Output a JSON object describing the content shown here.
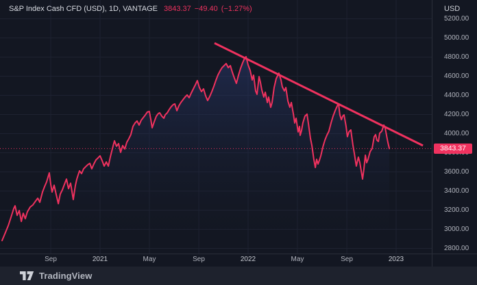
{
  "header": {
    "symbol_title": "S&P Index Cash CFD (USD), 1D, VANTAGE",
    "last_price": "3843.37",
    "change": "−49.40",
    "change_pct": "(−1.27%)"
  },
  "price_axis": {
    "currency_label": "USD",
    "labels": [
      "5200.00",
      "5000.00",
      "4800.00",
      "4600.00",
      "4400.00",
      "4200.00",
      "4000.00",
      "3800.00",
      "3600.00",
      "3400.00",
      "3200.00",
      "3000.00",
      "2800.00"
    ],
    "price_tag": "3843.37"
  },
  "time_axis": {
    "labels": [
      {
        "text": "Sep",
        "t": 2020.667,
        "kind": "month"
      },
      {
        "text": "2021",
        "t": 2021.0,
        "kind": "year"
      },
      {
        "text": "May",
        "t": 2021.333,
        "kind": "month"
      },
      {
        "text": "Sep",
        "t": 2021.667,
        "kind": "month"
      },
      {
        "text": "2022",
        "t": 2022.0,
        "kind": "year"
      },
      {
        "text": "May",
        "t": 2022.333,
        "kind": "month"
      },
      {
        "text": "Sep",
        "t": 2022.667,
        "kind": "month"
      },
      {
        "text": "2023",
        "t": 2023.0,
        "kind": "year"
      }
    ]
  },
  "footer": {
    "brand": "TradingView",
    "logo_icon": "tradingview-logo"
  },
  "colors": {
    "background": "#131722",
    "grid": "#1e2231",
    "separator": "#2a2e39",
    "accent": "#f0325f",
    "area_fill_top": "rgba(48,66,130,0.50)",
    "area_fill_bottom": "rgba(19,23,34,0)",
    "axis_text": "#b2b5be",
    "title_text": "#d8dbe2",
    "footer_bg": "#1e222d"
  },
  "chart_data": {
    "type": "area",
    "title": "S&P Index Cash CFD (USD), 1D, VANTAGE",
    "xlabel": "",
    "ylabel": "USD",
    "x_unit": "decimal_year",
    "x_range": [
      2020.324,
      2023.241
    ],
    "y_range": [
      2746,
      5396
    ],
    "grid": true,
    "y_gridlines": [
      2800,
      3000,
      3200,
      3400,
      3600,
      3800,
      4000,
      4200,
      4400,
      4600,
      4800,
      5000,
      5200
    ],
    "price_line": {
      "value": 3843.37,
      "style": "dotted"
    },
    "trendline": {
      "name": "descending-trendline",
      "from": [
        2021.773,
        4946
      ],
      "to": [
        2023.181,
        3875
      ]
    },
    "series": [
      {
        "name": "S&P Index Cash CFD (USD) 1D close",
        "points": [
          [
            2020.338,
            2882
          ],
          [
            2020.361,
            2968
          ],
          [
            2020.38,
            3039
          ],
          [
            2020.398,
            3125
          ],
          [
            2020.417,
            3218
          ],
          [
            2020.426,
            3246
          ],
          [
            2020.44,
            3146
          ],
          [
            2020.454,
            3196
          ],
          [
            2020.468,
            3082
          ],
          [
            2020.481,
            3168
          ],
          [
            2020.495,
            3111
          ],
          [
            2020.509,
            3182
          ],
          [
            2020.528,
            3232
          ],
          [
            2020.546,
            3254
          ],
          [
            2020.565,
            3296
          ],
          [
            2020.579,
            3325
          ],
          [
            2020.593,
            3282
          ],
          [
            2020.611,
            3389
          ],
          [
            2020.625,
            3446
          ],
          [
            2020.639,
            3496
          ],
          [
            2020.657,
            3589
          ],
          [
            2020.667,
            3468
          ],
          [
            2020.676,
            3389
          ],
          [
            2020.69,
            3461
          ],
          [
            2020.704,
            3361
          ],
          [
            2020.718,
            3268
          ],
          [
            2020.731,
            3368
          ],
          [
            2020.745,
            3411
          ],
          [
            2020.759,
            3468
          ],
          [
            2020.773,
            3525
          ],
          [
            2020.787,
            3425
          ],
          [
            2020.801,
            3482
          ],
          [
            2020.81,
            3396
          ],
          [
            2020.819,
            3311
          ],
          [
            2020.833,
            3454
          ],
          [
            2020.843,
            3525
          ],
          [
            2020.852,
            3568
          ],
          [
            2020.861,
            3611
          ],
          [
            2020.875,
            3582
          ],
          [
            2020.889,
            3632
          ],
          [
            2020.903,
            3654
          ],
          [
            2020.917,
            3675
          ],
          [
            2020.931,
            3689
          ],
          [
            2020.944,
            3632
          ],
          [
            2020.958,
            3682
          ],
          [
            2020.972,
            3725
          ],
          [
            2020.986,
            3746
          ],
          [
            2021.0,
            3768
          ],
          [
            2021.014,
            3718
          ],
          [
            2021.028,
            3661
          ],
          [
            2021.042,
            3704
          ],
          [
            2021.056,
            3661
          ],
          [
            2021.069,
            3754
          ],
          [
            2021.083,
            3839
          ],
          [
            2021.097,
            3925
          ],
          [
            2021.111,
            3868
          ],
          [
            2021.125,
            3896
          ],
          [
            2021.139,
            3804
          ],
          [
            2021.153,
            3875
          ],
          [
            2021.167,
            3839
          ],
          [
            2021.181,
            3911
          ],
          [
            2021.194,
            3946
          ],
          [
            2021.208,
            3989
          ],
          [
            2021.222,
            4075
          ],
          [
            2021.236,
            4111
          ],
          [
            2021.25,
            4132
          ],
          [
            2021.264,
            4089
          ],
          [
            2021.278,
            4139
          ],
          [
            2021.292,
            4168
          ],
          [
            2021.306,
            4196
          ],
          [
            2021.319,
            4225
          ],
          [
            2021.333,
            4232
          ],
          [
            2021.343,
            4146
          ],
          [
            2021.352,
            4061
          ],
          [
            2021.366,
            4125
          ],
          [
            2021.38,
            4182
          ],
          [
            2021.394,
            4211
          ],
          [
            2021.403,
            4218
          ],
          [
            2021.417,
            4182
          ],
          [
            2021.431,
            4161
          ],
          [
            2021.44,
            4196
          ],
          [
            2021.454,
            4218
          ],
          [
            2021.468,
            4254
          ],
          [
            2021.481,
            4282
          ],
          [
            2021.495,
            4304
          ],
          [
            2021.505,
            4311
          ],
          [
            2021.519,
            4239
          ],
          [
            2021.532,
            4289
          ],
          [
            2021.546,
            4325
          ],
          [
            2021.56,
            4354
          ],
          [
            2021.574,
            4382
          ],
          [
            2021.588,
            4404
          ],
          [
            2021.602,
            4375
          ],
          [
            2021.616,
            4425
          ],
          [
            2021.63,
            4468
          ],
          [
            2021.644,
            4511
          ],
          [
            2021.657,
            4554
          ],
          [
            2021.671,
            4482
          ],
          [
            2021.685,
            4439
          ],
          [
            2021.699,
            4468
          ],
          [
            2021.713,
            4396
          ],
          [
            2021.727,
            4346
          ],
          [
            2021.741,
            4389
          ],
          [
            2021.755,
            4439
          ],
          [
            2021.769,
            4496
          ],
          [
            2021.782,
            4554
          ],
          [
            2021.796,
            4611
          ],
          [
            2021.81,
            4654
          ],
          [
            2021.824,
            4689
          ],
          [
            2021.838,
            4711
          ],
          [
            2021.852,
            4732
          ],
          [
            2021.866,
            4689
          ],
          [
            2021.88,
            4711
          ],
          [
            2021.894,
            4639
          ],
          [
            2021.907,
            4582
          ],
          [
            2021.921,
            4525
          ],
          [
            2021.935,
            4611
          ],
          [
            2021.949,
            4682
          ],
          [
            2021.963,
            4739
          ],
          [
            2021.977,
            4789
          ],
          [
            2021.986,
            4804
          ],
          [
            2022.0,
            4718
          ],
          [
            2022.014,
            4661
          ],
          [
            2022.028,
            4561
          ],
          [
            2022.037,
            4611
          ],
          [
            2022.051,
            4446
          ],
          [
            2022.06,
            4411
          ],
          [
            2022.074,
            4596
          ],
          [
            2022.083,
            4539
          ],
          [
            2022.093,
            4454
          ],
          [
            2022.106,
            4382
          ],
          [
            2022.116,
            4432
          ],
          [
            2022.13,
            4325
          ],
          [
            2022.139,
            4382
          ],
          [
            2022.153,
            4275
          ],
          [
            2022.162,
            4325
          ],
          [
            2022.176,
            4482
          ],
          [
            2022.19,
            4575
          ],
          [
            2022.208,
            4632
          ],
          [
            2022.222,
            4561
          ],
          [
            2022.231,
            4489
          ],
          [
            2022.245,
            4446
          ],
          [
            2022.255,
            4482
          ],
          [
            2022.269,
            4339
          ],
          [
            2022.282,
            4275
          ],
          [
            2022.292,
            4325
          ],
          [
            2022.306,
            4204
          ],
          [
            2022.315,
            4111
          ],
          [
            2022.324,
            4161
          ],
          [
            2022.338,
            4018
          ],
          [
            2022.347,
            4075
          ],
          [
            2022.352,
            3982
          ],
          [
            2022.361,
            4032
          ],
          [
            2022.37,
            4111
          ],
          [
            2022.384,
            4182
          ],
          [
            2022.398,
            4204
          ],
          [
            2022.407,
            4111
          ],
          [
            2022.421,
            3954
          ],
          [
            2022.431,
            3875
          ],
          [
            2022.444,
            3732
          ],
          [
            2022.454,
            3646
          ],
          [
            2022.463,
            3732
          ],
          [
            2022.472,
            3682
          ],
          [
            2022.481,
            3718
          ],
          [
            2022.491,
            3768
          ],
          [
            2022.505,
            3861
          ],
          [
            2022.519,
            3932
          ],
          [
            2022.532,
            3982
          ],
          [
            2022.546,
            4025
          ],
          [
            2022.56,
            4111
          ],
          [
            2022.574,
            4182
          ],
          [
            2022.588,
            4239
          ],
          [
            2022.602,
            4289
          ],
          [
            2022.611,
            4311
          ],
          [
            2022.62,
            4196
          ],
          [
            2022.63,
            4146
          ],
          [
            2022.639,
            4182
          ],
          [
            2022.648,
            4196
          ],
          [
            2022.662,
            4075
          ],
          [
            2022.671,
            3968
          ],
          [
            2022.681,
            4018
          ],
          [
            2022.694,
            4039
          ],
          [
            2022.708,
            3882
          ],
          [
            2022.718,
            3789
          ],
          [
            2022.731,
            3661
          ],
          [
            2022.745,
            3754
          ],
          [
            2022.755,
            3696
          ],
          [
            2022.773,
            3525
          ],
          [
            2022.782,
            3625
          ],
          [
            2022.792,
            3775
          ],
          [
            2022.801,
            3696
          ],
          [
            2022.81,
            3732
          ],
          [
            2022.824,
            3811
          ],
          [
            2022.838,
            3846
          ],
          [
            2022.852,
            3968
          ],
          [
            2022.861,
            3989
          ],
          [
            2022.87,
            3932
          ],
          [
            2022.88,
            3918
          ],
          [
            2022.889,
            4004
          ],
          [
            2022.903,
            4025
          ],
          [
            2022.917,
            4089
          ],
          [
            2022.926,
            4061
          ],
          [
            2022.935,
            3982
          ],
          [
            2022.944,
            3911
          ],
          [
            2022.954,
            3843.37
          ]
        ]
      }
    ]
  }
}
